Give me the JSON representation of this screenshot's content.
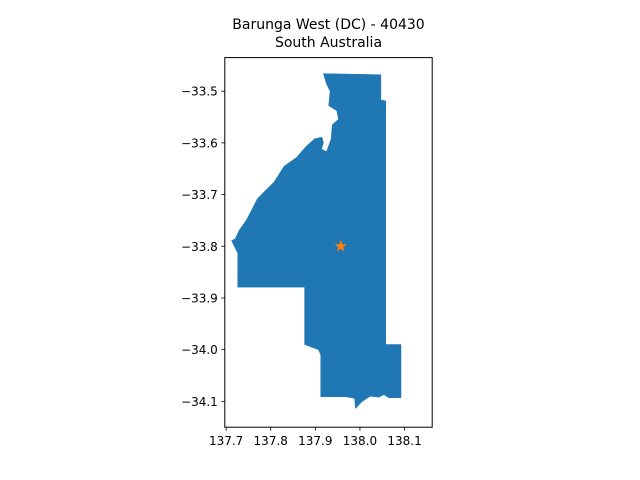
{
  "map": {
    "title_line1": "Barunga West (DC) - 40430",
    "title_line2": "South Australia",
    "region_color": "#1f77b4",
    "marker_color": "#ff7f0e",
    "marker_shape": "star",
    "marker": {
      "lon": 137.957,
      "lat": -33.8
    },
    "x_axis": {
      "range": [
        137.697,
        138.162
      ],
      "ticks": [
        137.7,
        137.8,
        137.9,
        138.0,
        138.1
      ],
      "tick_labels": [
        "137.7",
        "137.8",
        "137.9",
        "138.0",
        "138.1"
      ]
    },
    "y_axis": {
      "range": [
        -34.15,
        -33.435
      ],
      "ticks": [
        -33.5,
        -33.6,
        -33.7,
        -33.8,
        -33.9,
        -34.0,
        -34.1
      ],
      "tick_labels": [
        "−33.5",
        "−33.6",
        "−33.7",
        "−33.8",
        "−33.9",
        "−34.0",
        "−34.1"
      ]
    },
    "region_outline_lonlat": [
      [
        137.918,
        -33.466
      ],
      [
        138.047,
        -33.468
      ],
      [
        138.047,
        -33.517
      ],
      [
        138.058,
        -33.519
      ],
      [
        138.058,
        -33.99
      ],
      [
        138.092,
        -33.99
      ],
      [
        138.092,
        -34.093
      ],
      [
        138.064,
        -34.093
      ],
      [
        138.054,
        -34.087
      ],
      [
        138.042,
        -34.092
      ],
      [
        138.023,
        -34.09
      ],
      [
        138.004,
        -34.101
      ],
      [
        137.99,
        -34.114
      ],
      [
        137.988,
        -34.094
      ],
      [
        137.967,
        -34.091
      ],
      [
        137.912,
        -34.091
      ],
      [
        137.912,
        -34.01
      ],
      [
        137.907,
        -34.0
      ],
      [
        137.876,
        -33.99
      ],
      [
        137.876,
        -33.879
      ],
      [
        137.726,
        -33.879
      ],
      [
        137.726,
        -33.813
      ],
      [
        137.712,
        -33.789
      ],
      [
        137.72,
        -33.786
      ],
      [
        137.73,
        -33.768
      ],
      [
        137.745,
        -33.75
      ],
      [
        137.757,
        -33.73
      ],
      [
        137.77,
        -33.708
      ],
      [
        137.787,
        -33.693
      ],
      [
        137.807,
        -33.676
      ],
      [
        137.83,
        -33.645
      ],
      [
        137.858,
        -33.628
      ],
      [
        137.878,
        -33.608
      ],
      [
        137.898,
        -33.592
      ],
      [
        137.915,
        -33.589
      ],
      [
        137.918,
        -33.6
      ],
      [
        137.914,
        -33.612
      ],
      [
        137.925,
        -33.617
      ],
      [
        137.935,
        -33.593
      ],
      [
        137.938,
        -33.565
      ],
      [
        137.952,
        -33.554
      ],
      [
        137.948,
        -33.538
      ],
      [
        137.93,
        -33.528
      ],
      [
        137.933,
        -33.5
      ],
      [
        137.925,
        -33.486
      ]
    ]
  }
}
